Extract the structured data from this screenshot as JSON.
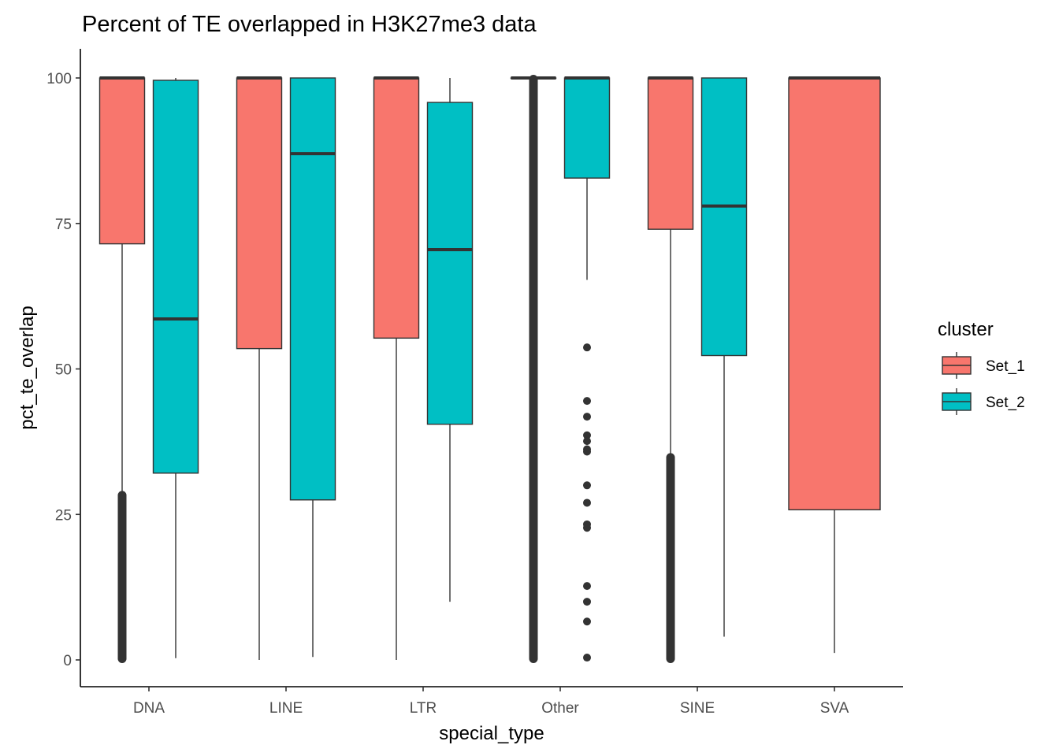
{
  "chart_data": {
    "type": "boxplot",
    "title": "Percent of TE overlapped in H3K27me3 data",
    "xlabel": "special_type",
    "ylabel": "pct_te_overlap",
    "ylim": [
      -5,
      105
    ],
    "yticks": [
      0,
      25,
      50,
      75,
      100
    ],
    "categories": [
      "DNA",
      "LINE",
      "LTR",
      "Other",
      "SINE",
      "SVA"
    ],
    "legend": {
      "title": "cluster",
      "position": "right",
      "entries": [
        {
          "name": "Set_1",
          "color": "#F8766D"
        },
        {
          "name": "Set_2",
          "color": "#00BFC4"
        }
      ]
    },
    "series": [
      {
        "name": "Set_1",
        "color": "#F8766D",
        "boxes": [
          {
            "category": "DNA",
            "min": 28.5,
            "q1": 71.5,
            "median": 100,
            "q3": 100,
            "max": 100,
            "dense_outliers": [
              0,
              28.5
            ]
          },
          {
            "category": "LINE",
            "min": 0,
            "q1": 53.5,
            "median": 100,
            "q3": 100,
            "max": 100
          },
          {
            "category": "LTR",
            "min": 0,
            "q1": 55.3,
            "median": 100,
            "q3": 100,
            "max": 100
          },
          {
            "category": "Other",
            "min": 100,
            "q1": 100,
            "median": 100,
            "q3": 100,
            "max": 100,
            "dense_outliers": [
              0,
              100
            ]
          },
          {
            "category": "SINE",
            "min": 35,
            "q1": 74,
            "median": 100,
            "q3": 100,
            "max": 100,
            "dense_outliers": [
              0,
              35
            ]
          },
          {
            "category": "SVA",
            "min": 1.2,
            "q1": 25.8,
            "median": 100,
            "q3": 100,
            "max": 100,
            "full_width": true
          }
        ]
      },
      {
        "name": "Set_2",
        "color": "#00BFC4",
        "boxes": [
          {
            "category": "DNA",
            "min": 0.3,
            "q1": 32.1,
            "median": 58.6,
            "q3": 99.6,
            "max": 100
          },
          {
            "category": "LINE",
            "min": 0.5,
            "q1": 27.5,
            "median": 87,
            "q3": 100,
            "max": 100
          },
          {
            "category": "LTR",
            "min": 10,
            "q1": 40.5,
            "median": 70.5,
            "q3": 95.8,
            "max": 100
          },
          {
            "category": "Other",
            "min": 65.3,
            "q1": 82.8,
            "median": 100,
            "q3": 100,
            "max": 100,
            "outliers": [
              53.7,
              44.5,
              41.8,
              38.6,
              37.6,
              36.2,
              35.8,
              30,
              27,
              23.3,
              22.7,
              12.7,
              10,
              6.6,
              0.4
            ]
          },
          {
            "category": "SINE",
            "min": 4,
            "q1": 52.3,
            "median": 78,
            "q3": 100,
            "max": 100
          }
        ]
      }
    ]
  }
}
